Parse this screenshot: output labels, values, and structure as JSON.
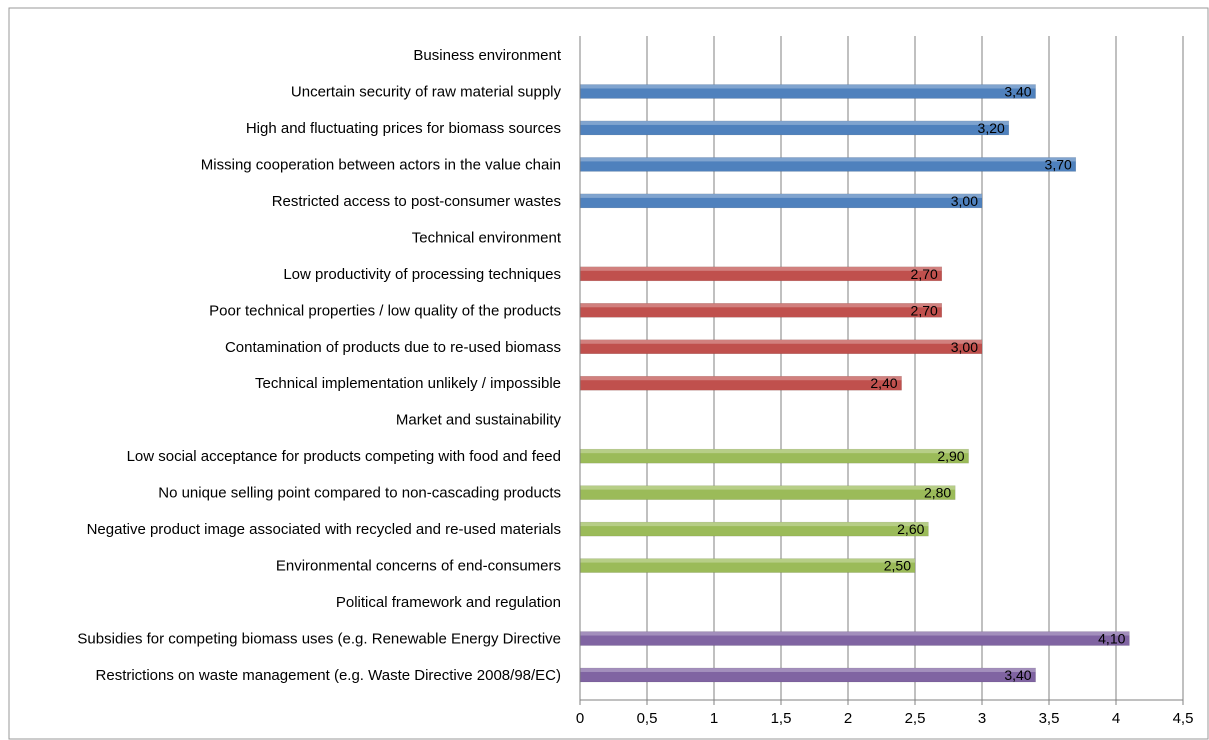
{
  "chart_data": {
    "type": "bar",
    "orientation": "horizontal",
    "title": "",
    "xlabel": "",
    "ylabel": "",
    "xlim": [
      0,
      4.5
    ],
    "x_ticks": [
      "0",
      "0,5",
      "1",
      "1,5",
      "2",
      "2,5",
      "3",
      "3,5",
      "4",
      "4,5"
    ],
    "grid": "vertical",
    "legend": "none",
    "rows": [
      {
        "label": "Business environment",
        "value": null,
        "value_label": "",
        "color": ""
      },
      {
        "label": "Uncertain security of raw material supply ",
        "value": 3.4,
        "value_label": "3,40",
        "color": "#4f81bd"
      },
      {
        "label": "High and fluctuating prices for biomass sources",
        "value": 3.2,
        "value_label": "3,20",
        "color": "#4f81bd"
      },
      {
        "label": "Missing cooperation between actors in the value chain ",
        "value": 3.7,
        "value_label": "3,70",
        "color": "#4f81bd"
      },
      {
        "label": "Restricted access to post-consumer wastes",
        "value": 3.0,
        "value_label": "3,00",
        "color": "#4f81bd"
      },
      {
        "label": "Technical environment",
        "value": null,
        "value_label": "",
        "color": ""
      },
      {
        "label": "Low productivity of processing techniques ",
        "value": 2.7,
        "value_label": "2,70",
        "color": "#c0504d"
      },
      {
        "label": "Poor technical properties / low quality of the products",
        "value": 2.7,
        "value_label": "2,70",
        "color": "#c0504d"
      },
      {
        "label": "Contamination of products due to re-used biomass ",
        "value": 3.0,
        "value_label": "3,00",
        "color": "#c0504d"
      },
      {
        "label": "Technical implementation unlikely / impossible",
        "value": 2.4,
        "value_label": "2,40",
        "color": "#c0504d"
      },
      {
        "label": "Market and sustainability ",
        "value": null,
        "value_label": "",
        "color": ""
      },
      {
        "label": "Low social acceptance for products competing with food and feed",
        "value": 2.9,
        "value_label": "2,90",
        "color": "#9bbb59"
      },
      {
        "label": "No unique selling point compared to non-cascading products",
        "value": 2.8,
        "value_label": "2,80",
        "color": "#9bbb59"
      },
      {
        "label": "Negative product image associated with recycled and re-used materials",
        "value": 2.6,
        "value_label": "2,60",
        "color": "#9bbb59"
      },
      {
        "label": "Environmental concerns of end-consumers",
        "value": 2.5,
        "value_label": "2,50",
        "color": "#9bbb59"
      },
      {
        "label": "Political framework and regulation",
        "value": null,
        "value_label": "",
        "color": ""
      },
      {
        "label": "Subsidies for competing biomass uses (e.g. Renewable Energy Directive",
        "value": 4.1,
        "value_label": "4,10",
        "color": "#8064a2"
      },
      {
        "label": "Restrictions on waste management (e.g. Waste Directive 2008/98/EC)",
        "value": 3.4,
        "value_label": "3,40",
        "color": "#8064a2"
      }
    ]
  }
}
